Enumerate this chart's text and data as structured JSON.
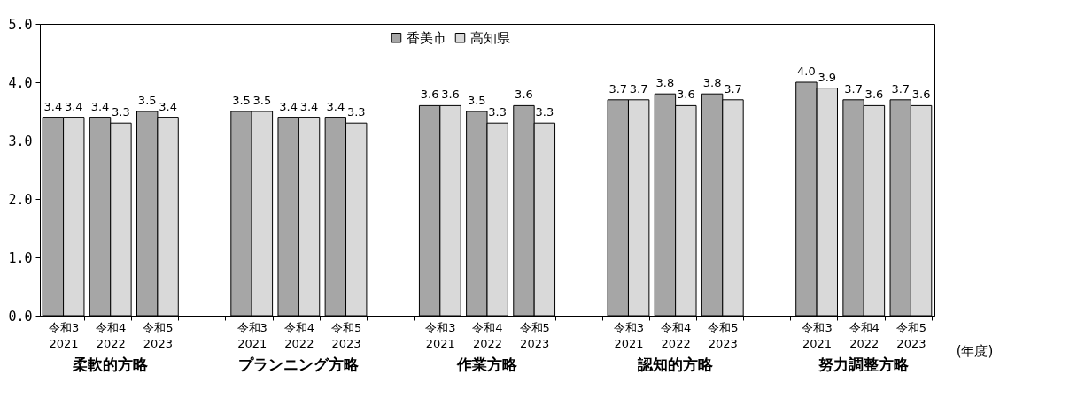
{
  "chart_data": {
    "type": "bar",
    "xlabel": "(年度)",
    "categories": [
      "令和3\n2021",
      "令和4\n2022",
      "令和5\n2023",
      null,
      "令和3\n2021",
      "令和4\n2022",
      "令和5\n2023",
      null,
      "令和3\n2021",
      "令和4\n2022",
      "令和5\n2023",
      null,
      "令和3\n2021",
      "令和4\n2022",
      "令和5\n2023",
      null,
      "令和3\n2021",
      "令和4\n2022",
      "令和5\n2023"
    ],
    "series": [
      {
        "name": "香美市",
        "color": "#a6a6a6",
        "values": [
          3.4,
          3.4,
          3.5,
          null,
          3.5,
          3.4,
          3.4,
          null,
          3.6,
          3.5,
          3.6,
          null,
          3.7,
          3.8,
          3.8,
          null,
          4.0,
          3.7,
          3.7
        ],
        "value_labels": [
          "3.4",
          "3.4",
          "3.5",
          null,
          "3.5",
          "3.4",
          "3.4",
          null,
          "3.6",
          "3.5",
          "3.6",
          null,
          "3.7",
          "3.8",
          "3.8",
          null,
          "4.0",
          "3.7",
          "3.7"
        ]
      },
      {
        "name": "高知県",
        "color": "#d9d9d9",
        "values": [
          3.4,
          3.3,
          3.4,
          null,
          3.5,
          3.4,
          3.3,
          null,
          3.6,
          3.3,
          3.3,
          null,
          3.7,
          3.6,
          3.7,
          null,
          3.9,
          3.6,
          3.6
        ],
        "value_labels": [
          "3.4",
          "3.3",
          "3.4",
          null,
          "3.5",
          "3.4",
          "3.3",
          null,
          "3.6",
          "3.3",
          "3.3",
          null,
          "3.7",
          "3.6",
          "3.7",
          null,
          "3.9",
          "3.6",
          "3.6"
        ]
      }
    ],
    "annotations": [
      "柔軟的方略",
      "プランニング方略",
      "作業方略",
      "認知的方略",
      "努力調整方略"
    ],
    "ylim": [
      0,
      5
    ],
    "yticks": [
      {
        "value": 0,
        "label": "0.0"
      },
      {
        "value": 1,
        "label": "1.0"
      },
      {
        "value": 2,
        "label": "2.0"
      },
      {
        "value": 3,
        "label": "3.0"
      },
      {
        "value": 4,
        "label": "4.0"
      },
      {
        "value": 5,
        "label": "5.0"
      }
    ],
    "legend": "top",
    "grid": false
  }
}
